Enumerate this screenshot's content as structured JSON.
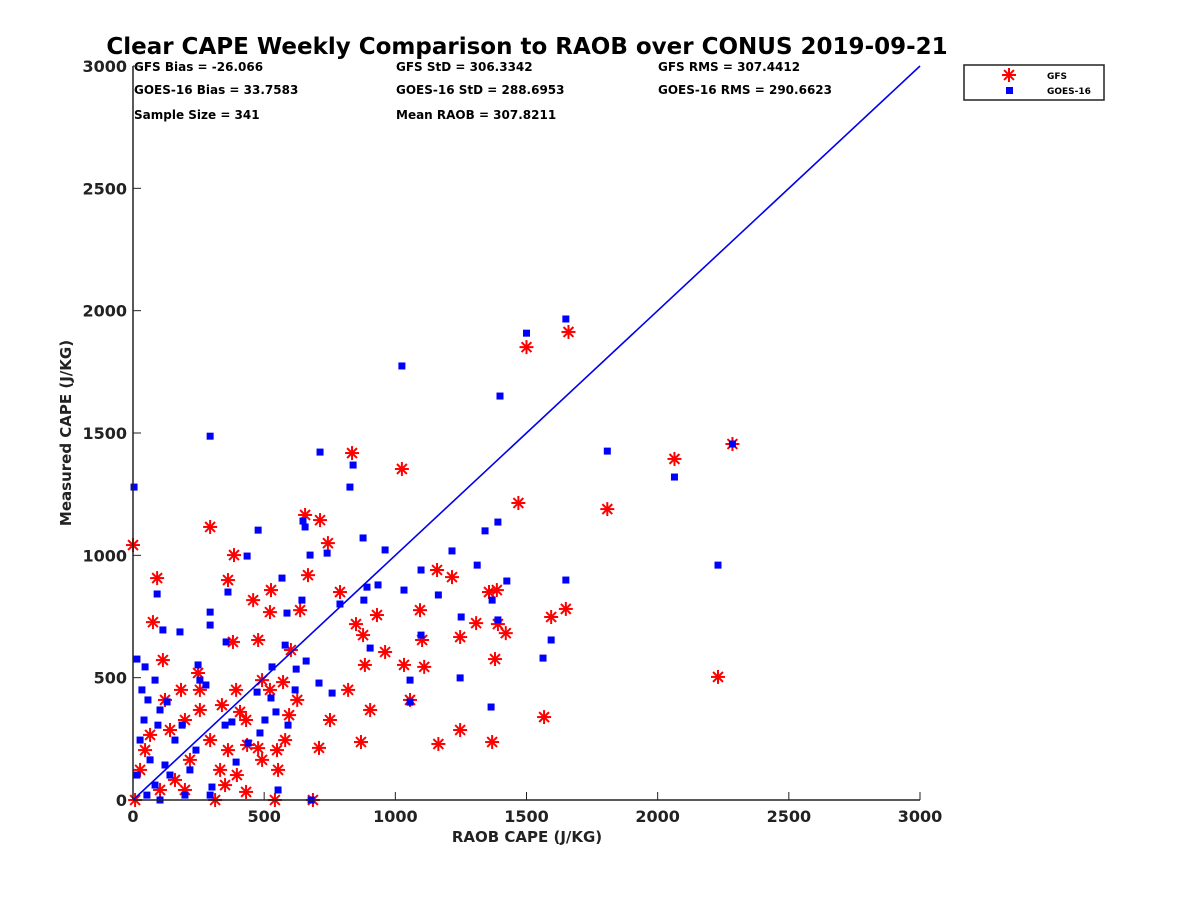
{
  "chart_data": {
    "type": "scatter",
    "title": "Clear CAPE Weekly Comparison to RAOB over CONUS 2019-09-21",
    "xlabel": "RAOB CAPE (J/KG)",
    "ylabel": "Measured CAPE (J/KG)",
    "xlim": [
      0,
      3000
    ],
    "ylim": [
      0,
      3000
    ],
    "xticks": [
      "0",
      "500",
      "1000",
      "1500",
      "2000",
      "2500",
      "3000"
    ],
    "yticks": [
      "0",
      "500",
      "1000",
      "1500",
      "2000",
      "2500",
      "3000"
    ],
    "grid": false,
    "legend_position": "top-right",
    "reference_line": {
      "name": "1:1",
      "from": [
        0,
        0
      ],
      "to": [
        3000,
        3000
      ],
      "color": "#0000ee"
    },
    "stats": [
      "GFS Bias = -26.066",
      "GFS StD = 306.3342",
      "GFS RMS = 307.4412",
      "GOES-16 Bias = 33.7583",
      "GOES-16 StD = 288.6953",
      "GOES-16 RMS = 290.6623",
      "Sample Size = 341",
      "Mean RAOB = 307.8211"
    ],
    "series": [
      {
        "name": "GFS",
        "marker": "asterisk",
        "color": "#ff0000",
        "points": [
          [
            0,
            1042
          ],
          [
            92,
            907
          ],
          [
            76,
            727
          ],
          [
            114,
            572
          ],
          [
            294,
            1116
          ],
          [
            381,
            646
          ],
          [
            385,
            1001
          ],
          [
            362,
            899
          ],
          [
            835,
            1418
          ],
          [
            1025,
            1353
          ],
          [
            1500,
            1851
          ],
          [
            1660,
            1913
          ],
          [
            1469,
            1214
          ],
          [
            1808,
            1189
          ],
          [
            2064,
            1394
          ],
          [
            2285,
            1455
          ],
          [
            2230,
            503
          ],
          [
            1650,
            781
          ],
          [
            1594,
            748
          ],
          [
            1567,
            339
          ],
          [
            1369,
            237
          ],
          [
            1247,
            286
          ],
          [
            1164,
            229
          ],
          [
            1380,
            576
          ],
          [
            1387,
            858
          ],
          [
            1421,
            682
          ],
          [
            1391,
            719
          ],
          [
            1357,
            850
          ],
          [
            1308,
            723
          ],
          [
            1247,
            666
          ],
          [
            1216,
            911
          ],
          [
            1159,
            940
          ],
          [
            1110,
            544
          ],
          [
            1094,
            776
          ],
          [
            1102,
            654
          ],
          [
            1033,
            552
          ],
          [
            1056,
            409
          ],
          [
            961,
            605
          ],
          [
            930,
            756
          ],
          [
            904,
            368
          ],
          [
            869,
            237
          ],
          [
            884,
            552
          ],
          [
            877,
            674
          ],
          [
            850,
            719
          ],
          [
            820,
            450
          ],
          [
            789,
            850
          ],
          [
            751,
            327
          ],
          [
            713,
            1144
          ],
          [
            743,
            1050
          ],
          [
            656,
            1165
          ],
          [
            709,
            213
          ],
          [
            686,
            0
          ],
          [
            667,
            919
          ],
          [
            637,
            776
          ],
          [
            602,
            613
          ],
          [
            572,
            482
          ],
          [
            553,
            123
          ],
          [
            522,
            768
          ],
          [
            526,
            858
          ],
          [
            477,
            654
          ],
          [
            458,
            817
          ],
          [
            431,
            327
          ],
          [
            393,
            450
          ],
          [
            362,
            204
          ],
          [
            332,
            123
          ],
          [
            294,
            245
          ],
          [
            255,
            368
          ],
          [
            217,
            164
          ],
          [
            160,
            82
          ],
          [
            122,
            409
          ],
          [
            65,
            266
          ],
          [
            27,
            123
          ],
          [
            8,
            0
          ],
          [
            313,
            0
          ],
          [
            435,
            225
          ],
          [
            492,
            164
          ],
          [
            549,
            204
          ],
          [
            595,
            347
          ],
          [
            626,
            409
          ],
          [
            183,
            450
          ],
          [
            255,
            450
          ],
          [
            198,
            327
          ],
          [
            248,
            519
          ],
          [
            408,
            360
          ],
          [
            339,
            388
          ],
          [
            492,
            490
          ],
          [
            522,
            450
          ],
          [
            198,
            41
          ],
          [
            103,
            41
          ],
          [
            46,
            204
          ],
          [
            141,
            286
          ],
          [
            580,
            245
          ],
          [
            431,
            33
          ],
          [
            541,
            0
          ],
          [
            396,
            102
          ],
          [
            477,
            212
          ],
          [
            351,
            61
          ]
        ]
      },
      {
        "name": "GOES-16",
        "marker": "square",
        "color": "#0000ff",
        "points": [
          [
            4,
            1279
          ],
          [
            294,
            1487
          ],
          [
            1025,
            1774
          ],
          [
            1500,
            1908
          ],
          [
            1650,
            1966
          ],
          [
            1399,
            1651
          ],
          [
            1808,
            1426
          ],
          [
            2064,
            1320
          ],
          [
            2285,
            1455
          ],
          [
            2230,
            960
          ],
          [
            1650,
            899
          ],
          [
            1594,
            654
          ],
          [
            1563,
            580
          ],
          [
            1365,
            380
          ],
          [
            1247,
            499
          ],
          [
            1251,
            748
          ],
          [
            1216,
            1018
          ],
          [
            1312,
            960
          ],
          [
            1342,
            1100
          ],
          [
            1391,
            1136
          ],
          [
            1425,
            895
          ],
          [
            1391,
            736
          ],
          [
            1369,
            817
          ],
          [
            1098,
            940
          ],
          [
            1164,
            838
          ],
          [
            1098,
            674
          ],
          [
            1056,
            490
          ],
          [
            1056,
            400
          ],
          [
            1033,
            858
          ],
          [
            961,
            1022
          ],
          [
            934,
            879
          ],
          [
            892,
            870
          ],
          [
            904,
            621
          ],
          [
            877,
            1071
          ],
          [
            880,
            817
          ],
          [
            839,
            1369
          ],
          [
            827,
            1279
          ],
          [
            789,
            801
          ],
          [
            759,
            437
          ],
          [
            713,
            1422
          ],
          [
            740,
            1009
          ],
          [
            675,
            1001
          ],
          [
            656,
            1116
          ],
          [
            648,
            1140
          ],
          [
            709,
            478
          ],
          [
            679,
            0
          ],
          [
            660,
            568
          ],
          [
            644,
            817
          ],
          [
            622,
            535
          ],
          [
            587,
            764
          ],
          [
            580,
            633
          ],
          [
            568,
            907
          ],
          [
            530,
            544
          ],
          [
            526,
            417
          ],
          [
            477,
            1103
          ],
          [
            435,
            997
          ],
          [
            473,
            441
          ],
          [
            439,
            233
          ],
          [
            393,
            155
          ],
          [
            362,
            850
          ],
          [
            355,
            646
          ],
          [
            294,
            715
          ],
          [
            294,
            768
          ],
          [
            278,
            470
          ],
          [
            255,
            490
          ],
          [
            248,
            552
          ],
          [
            301,
            53
          ],
          [
            179,
            687
          ],
          [
            114,
            695
          ],
          [
            130,
            401
          ],
          [
            92,
            842
          ],
          [
            46,
            544
          ],
          [
            15,
            576
          ],
          [
            34,
            450
          ],
          [
            84,
            490
          ],
          [
            57,
            409
          ],
          [
            103,
            368
          ],
          [
            160,
            245
          ],
          [
            65,
            164
          ],
          [
            15,
            102
          ],
          [
            27,
            245
          ],
          [
            122,
            143
          ],
          [
            187,
            306
          ],
          [
            240,
            204
          ],
          [
            217,
            123
          ],
          [
            351,
            306
          ],
          [
            377,
            319
          ],
          [
            484,
            274
          ],
          [
            503,
            327
          ],
          [
            545,
            360
          ],
          [
            618,
            450
          ],
          [
            42,
            327
          ],
          [
            95,
            306
          ],
          [
            141,
            102
          ],
          [
            84,
            61
          ],
          [
            53,
            20
          ],
          [
            198,
            20
          ],
          [
            294,
            20
          ],
          [
            103,
            0
          ],
          [
            553,
            41
          ],
          [
            591,
            306
          ]
        ]
      }
    ]
  }
}
